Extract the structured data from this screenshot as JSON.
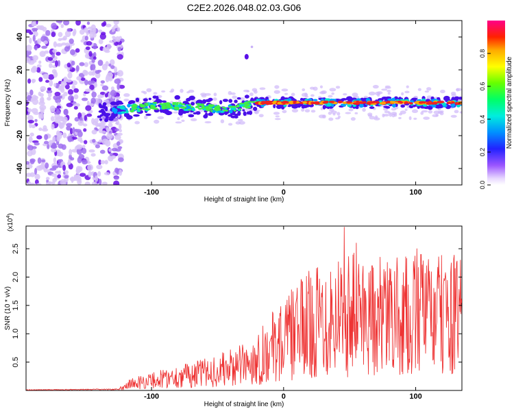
{
  "title": "C2E2.2026.048.02.03.G06",
  "chart_data": [
    {
      "type": "heatmap",
      "name": "spectrogram",
      "xlabel": "Height of straight line (km)",
      "ylabel": "Frequency (Hz)",
      "xlim": [
        -195,
        135
      ],
      "ylim": [
        -50,
        50
      ],
      "xticks": [
        -100,
        0,
        100
      ],
      "yticks": [
        -40,
        -20,
        0,
        20,
        40
      ],
      "colorbar": {
        "label": "Normalized spectral amplitude",
        "range": [
          0,
          1
        ],
        "ticks": [
          0.0,
          0.2,
          0.4,
          0.6,
          0.8
        ]
      },
      "features": {
        "noise_region_x": [
          -195,
          -122
        ],
        "ridge_center_hz": [
          {
            "x": -140,
            "y": -7
          },
          {
            "x": -120,
            "y": -4
          },
          {
            "x": -100,
            "y": -2
          },
          {
            "x": -80,
            "y": -2
          },
          {
            "x": -60,
            "y": -3
          },
          {
            "x": -40,
            "y": -4
          },
          {
            "x": -20,
            "y": 0
          },
          {
            "x": 0,
            "y": 0
          },
          {
            "x": 40,
            "y": 0
          },
          {
            "x": 80,
            "y": 0
          },
          {
            "x": 135,
            "y": 0
          }
        ],
        "isolated_blob": {
          "x": -28,
          "y": 28
        }
      }
    },
    {
      "type": "line",
      "name": "snr",
      "xlabel": "Height of straight line (km)",
      "ylabel": "SNR (10 * v/v)",
      "y_multiplier": "(x10",
      "y_multiplier_exp": "4",
      "y_multiplier_close": ")",
      "xlim": [
        -195,
        135
      ],
      "ylim": [
        0,
        2.9
      ],
      "xticks": [
        -100,
        0,
        100
      ],
      "yticks": [
        0.5,
        1.0,
        1.5,
        2.0,
        2.5
      ],
      "color": "#ee3333",
      "envelope": [
        {
          "x": -195,
          "y": 0.01
        },
        {
          "x": -125,
          "y": 0.02
        },
        {
          "x": -118,
          "y": 0.12
        },
        {
          "x": -100,
          "y": 0.2
        },
        {
          "x": -80,
          "y": 0.28
        },
        {
          "x": -60,
          "y": 0.35
        },
        {
          "x": -40,
          "y": 0.45
        },
        {
          "x": -25,
          "y": 0.55
        },
        {
          "x": -10,
          "y": 0.85
        },
        {
          "x": 0,
          "y": 1.0
        },
        {
          "x": 10,
          "y": 1.2
        },
        {
          "x": 25,
          "y": 1.4
        },
        {
          "x": 40,
          "y": 1.55
        },
        {
          "x": 60,
          "y": 1.55
        },
        {
          "x": 80,
          "y": 1.45
        },
        {
          "x": 100,
          "y": 1.5
        },
        {
          "x": 120,
          "y": 1.5
        },
        {
          "x": 135,
          "y": 1.5
        }
      ],
      "peaks": [
        {
          "x": 46,
          "y": 2.88
        },
        {
          "x": 55,
          "y": 2.6
        },
        {
          "x": 67,
          "y": 2.2
        },
        {
          "x": 101,
          "y": 2.5
        },
        {
          "x": 104,
          "y": 2.4
        },
        {
          "x": 127,
          "y": 2.25
        },
        {
          "x": 134,
          "y": 2.3
        },
        {
          "x": 84,
          "y": 2.1
        }
      ]
    }
  ]
}
